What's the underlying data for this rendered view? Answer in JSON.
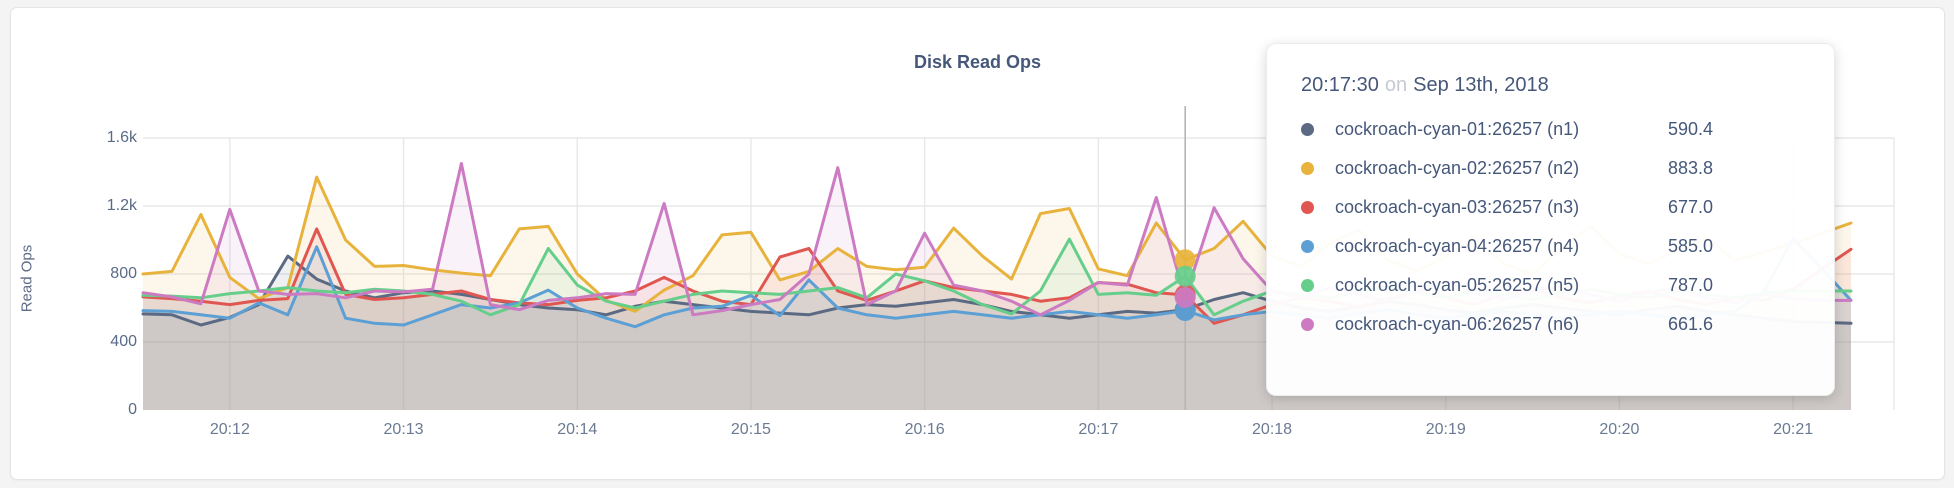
{
  "chart_data": {
    "type": "line",
    "title": "Disk Read Ops",
    "ylabel": "Read Ops",
    "ylim": [
      0,
      1600
    ],
    "grid": true,
    "x_start": "20:11:30",
    "x_step_seconds": 10,
    "x_ticks": [
      "20:12",
      "20:13",
      "20:14",
      "20:15",
      "20:16",
      "20:17",
      "20:18",
      "20:19",
      "20:20",
      "20:21"
    ],
    "y_ticks": [
      {
        "value": 0,
        "label": "0"
      },
      {
        "value": 400,
        "label": "400"
      },
      {
        "value": 800,
        "label": "800"
      },
      {
        "value": 1200,
        "label": "1.2k"
      },
      {
        "value": 1600,
        "label": "1.6k"
      }
    ],
    "hover_index": 36,
    "series": [
      {
        "id": "n1",
        "name": "cockroach-cyan-01:26257 (n1)",
        "color": "#5B6A82",
        "values": [
          565,
          560,
          500,
          545,
          620,
          905,
          770,
          700,
          660,
          690,
          700,
          680,
          650,
          620,
          600,
          590,
          560,
          610,
          640,
          620,
          600,
          580,
          570,
          560,
          600,
          620,
          610,
          630,
          650,
          620,
          580,
          560,
          540,
          560,
          580,
          570,
          590.4,
          650,
          690,
          640,
          600,
          580,
          610,
          640,
          620,
          590,
          570,
          600,
          620,
          600,
          580,
          560,
          590,
          610,
          580,
          560,
          540,
          520,
          515,
          510
        ]
      },
      {
        "id": "n2",
        "name": "cockroach-cyan-02:26257 (n2)",
        "color": "#E8B33C",
        "values": [
          800,
          815,
          1150,
          780,
          655,
          720,
          1370,
          1000,
          845,
          850,
          825,
          805,
          790,
          1065,
          1080,
          800,
          645,
          580,
          705,
          790,
          1030,
          1045,
          765,
          815,
          950,
          845,
          825,
          840,
          1070,
          905,
          770,
          1155,
          1185,
          830,
          790,
          1100,
          883.8,
          950,
          1110,
          905,
          845,
          980,
          1060,
          880,
          820,
          900,
          1010,
          860,
          800,
          950,
          1080,
          920,
          860,
          940,
          1010,
          880,
          930,
          980,
          1040,
          1100
        ]
      },
      {
        "id": "n3",
        "name": "cockroach-cyan-03:26257 (n3)",
        "color": "#E05752",
        "values": [
          665,
          655,
          640,
          620,
          645,
          655,
          1065,
          680,
          650,
          660,
          680,
          700,
          650,
          630,
          620,
          645,
          660,
          700,
          780,
          700,
          640,
          620,
          900,
          950,
          700,
          645,
          700,
          760,
          720,
          700,
          680,
          640,
          660,
          750,
          740,
          690,
          677.0,
          510,
          560,
          620,
          660,
          640,
          605,
          650,
          700,
          660,
          620,
          680,
          710,
          660,
          630,
          670,
          700,
          650,
          620,
          660,
          645,
          710,
          830,
          945
        ]
      },
      {
        "id": "n4",
        "name": "cockroach-cyan-04:26257 (n4)",
        "color": "#5C9FD4",
        "values": [
          585,
          580,
          560,
          540,
          630,
          560,
          960,
          540,
          510,
          500,
          560,
          620,
          600,
          630,
          705,
          600,
          540,
          490,
          560,
          600,
          610,
          675,
          555,
          765,
          600,
          560,
          540,
          560,
          580,
          560,
          540,
          560,
          580,
          560,
          540,
          560,
          585.0,
          530,
          560,
          580,
          560,
          540,
          570,
          590,
          560,
          540,
          560,
          580,
          560,
          540,
          560,
          580,
          560,
          540,
          560,
          580,
          700,
          1010,
          830,
          645
        ]
      },
      {
        "id": "n5",
        "name": "cockroach-cyan-05:26257 (n5)",
        "color": "#66CE8B",
        "values": [
          675,
          670,
          660,
          685,
          700,
          720,
          700,
          690,
          710,
          700,
          680,
          640,
          560,
          620,
          950,
          735,
          640,
          600,
          640,
          680,
          700,
          690,
          680,
          700,
          720,
          660,
          800,
          760,
          700,
          620,
          565,
          700,
          1005,
          680,
          690,
          675,
          787.0,
          560,
          640,
          700,
          680,
          660,
          700,
          720,
          690,
          660,
          700,
          680,
          650,
          690,
          710,
          680,
          660,
          700,
          680,
          660,
          690,
          700,
          700,
          700
        ]
      },
      {
        "id": "n6",
        "name": "cockroach-cyan-06:26257 (n6)",
        "color": "#CC7BC3",
        "values": [
          690,
          665,
          625,
          1180,
          700,
          680,
          685,
          660,
          700,
          695,
          710,
          1450,
          620,
          590,
          645,
          660,
          685,
          680,
          1215,
          560,
          585,
          620,
          650,
          800,
          1425,
          620,
          700,
          1040,
          735,
          700,
          640,
          560,
          645,
          750,
          735,
          1250,
          661.6,
          1190,
          890,
          700,
          660,
          720,
          680,
          640,
          700,
          760,
          690,
          650,
          700,
          730,
          680,
          640,
          690,
          720,
          660,
          630,
          680,
          655,
          645,
          645
        ]
      }
    ]
  },
  "tooltip": {
    "time": "20:17:30",
    "on_word": "on",
    "date": "Sep 13th, 2018",
    "rows": [
      {
        "label": "cockroach-cyan-01:26257 (n1)",
        "value": "590.4",
        "color": "#5B6A82"
      },
      {
        "label": "cockroach-cyan-02:26257 (n2)",
        "value": "883.8",
        "color": "#E8B33C"
      },
      {
        "label": "cockroach-cyan-03:26257 (n3)",
        "value": "677.0",
        "color": "#E05752"
      },
      {
        "label": "cockroach-cyan-04:26257 (n4)",
        "value": "585.0",
        "color": "#5C9FD4"
      },
      {
        "label": "cockroach-cyan-05:26257 (n5)",
        "value": "787.0",
        "color": "#66CE8B"
      },
      {
        "label": "cockroach-cyan-06:26257 (n6)",
        "value": "661.6",
        "color": "#CC7BC3"
      }
    ]
  }
}
